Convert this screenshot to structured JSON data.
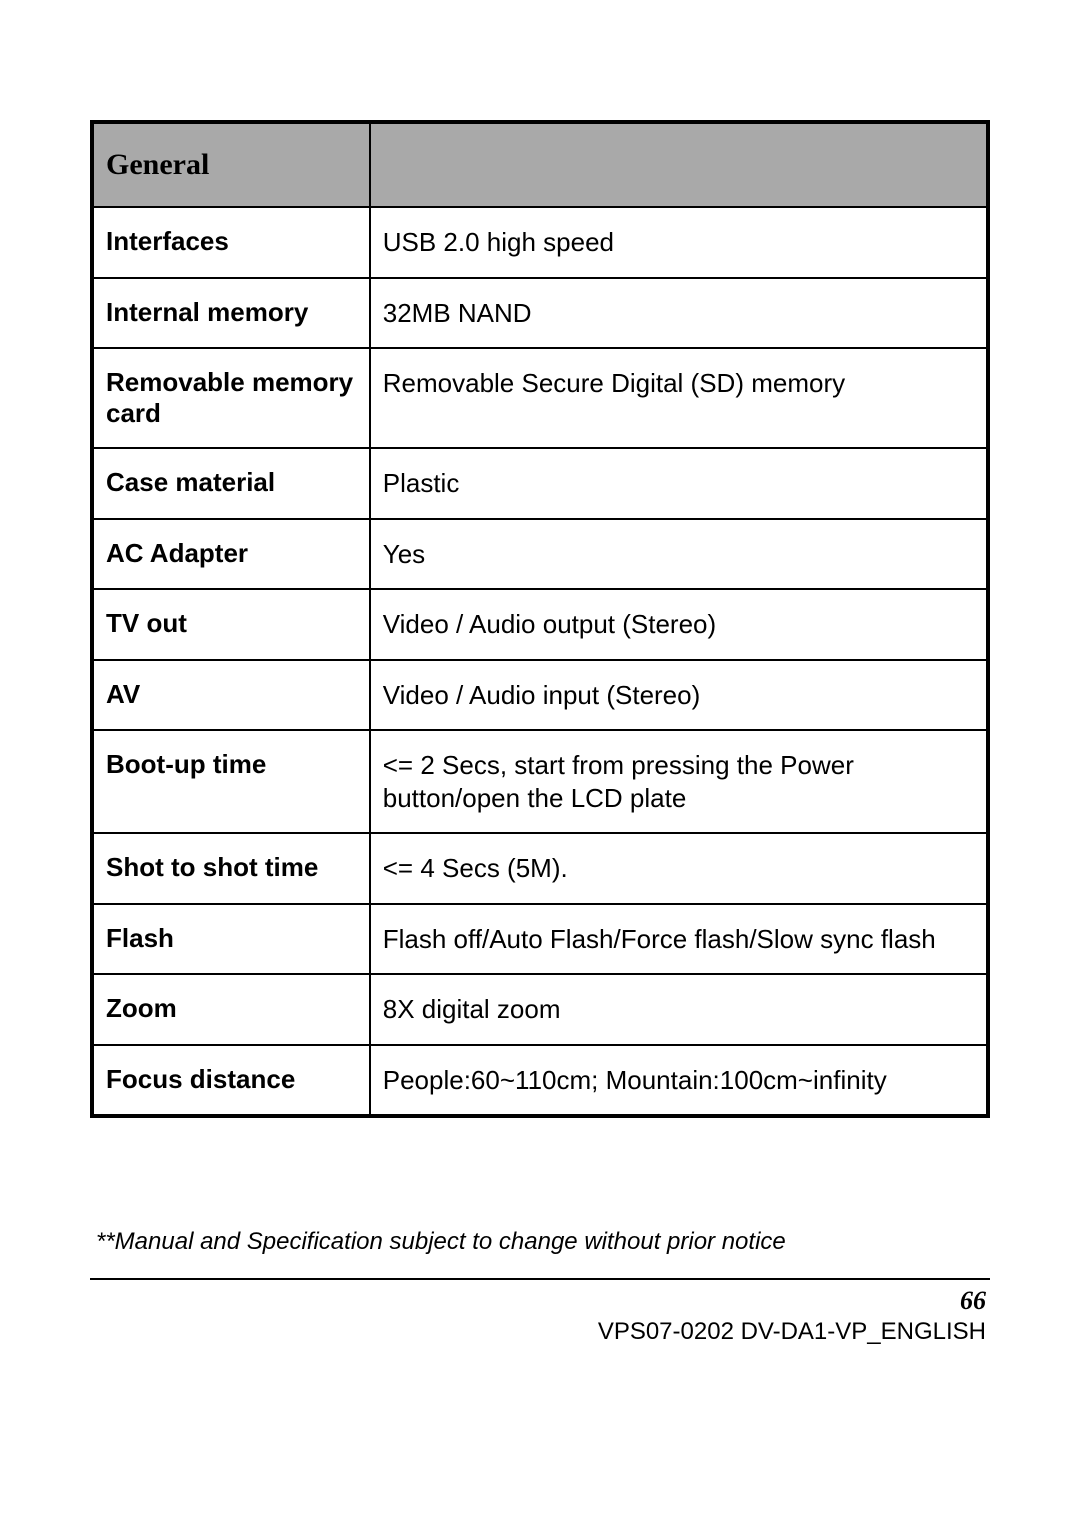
{
  "table": {
    "section_header": "General",
    "rows": [
      {
        "label": "Interfaces",
        "value": "USB 2.0 high speed"
      },
      {
        "label": "Internal memory",
        "value": "32MB NAND"
      },
      {
        "label": "Removable memory card",
        "value": "Removable Secure Digital (SD) memory"
      },
      {
        "label": "Case material",
        "value": "Plastic"
      },
      {
        "label": "AC Adapter",
        "value": "Yes"
      },
      {
        "label": "TV out",
        "value": "Video / Audio output (Stereo)"
      },
      {
        "label": "AV",
        "value": "Video / Audio input (Stereo)"
      },
      {
        "label": "Boot-up time",
        "value": "<= 2 Secs, start from pressing the Power button/open the LCD plate"
      },
      {
        "label": "Shot to shot time",
        "value": "<= 4 Secs (5M)."
      },
      {
        "label": "Flash",
        "value": "Flash off/Auto Flash/Force flash/Slow sync flash"
      },
      {
        "label": "Zoom",
        "value": "8X digital zoom"
      },
      {
        "label": "Focus distance",
        "value": "People:60~110cm; Mountain:100cm~infinity"
      }
    ]
  },
  "footnote": "**Manual and Specification subject to change without prior notice",
  "page_number": "66",
  "doc_id": "VPS07-0202 DV-DA1-VP_ENGLISH"
}
